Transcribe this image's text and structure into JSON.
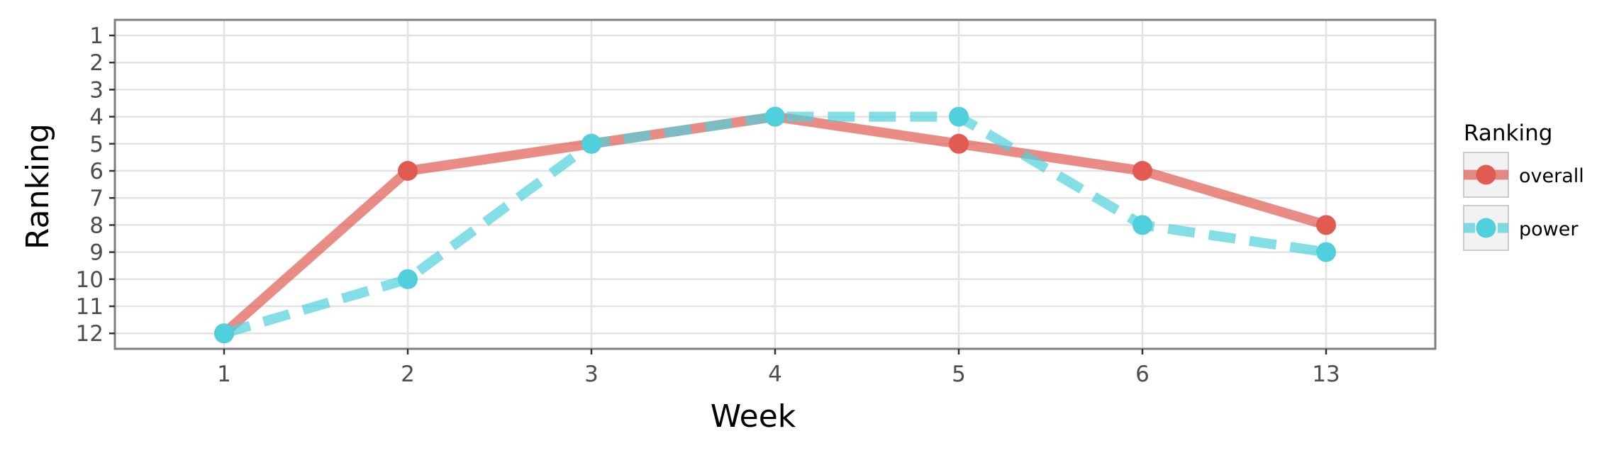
{
  "chart_data": {
    "type": "line",
    "xlabel": "Week",
    "ylabel": "Ranking",
    "categories": [
      "1",
      "2",
      "3",
      "4",
      "5",
      "6",
      "13"
    ],
    "y_ticks": [
      "1",
      "2",
      "3",
      "4",
      "5",
      "6",
      "7",
      "8",
      "9",
      "10",
      "11",
      "12"
    ],
    "ylim": [
      1,
      12
    ],
    "y_reversed": true,
    "grid": true,
    "legend": {
      "title": "Ranking",
      "placement": "right"
    },
    "series": [
      {
        "name": "overall",
        "values": [
          12,
          6,
          5,
          4,
          5,
          6,
          8
        ],
        "color": "#E15B52",
        "line_style": "solid"
      },
      {
        "name": "power",
        "values": [
          12,
          10,
          5,
          4,
          4,
          8,
          9
        ],
        "color": "#4FD0DC",
        "line_style": "dashed"
      }
    ]
  }
}
